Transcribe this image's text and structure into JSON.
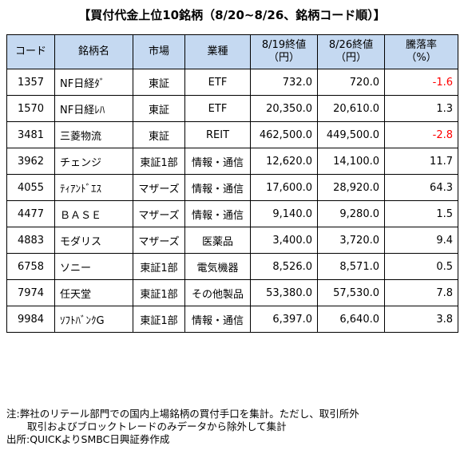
{
  "title": "【買付代金上位10銘柄（8/20~8/26、銘柄コード順）】",
  "headers": {
    "code": "コード",
    "name": "銘柄名",
    "market": "市場",
    "sector": "業種",
    "price_0819_line1": "8/19終値",
    "price_0819_line2": "（円）",
    "price_0826_line1": "8/26終値",
    "price_0826_line2": "（円）",
    "change_line1": "騰落率",
    "change_line2": "（%）"
  },
  "rows": [
    {
      "code": "1357",
      "name": "NF日経ﾀﾞ",
      "market": "東証",
      "sector": "ETF",
      "p0819": "732.0",
      "p0826": "720.0",
      "change": "-1.6"
    },
    {
      "code": "1570",
      "name": "NF日経ﾚﾊ",
      "market": "東証",
      "sector": "ETF",
      "p0819": "20,350.0",
      "p0826": "20,610.0",
      "change": "1.3"
    },
    {
      "code": "3481",
      "name": "三菱物流",
      "market": "東証",
      "sector": "REIT",
      "p0819": "462,500.0",
      "p0826": "449,500.0",
      "change": "-2.8"
    },
    {
      "code": "3962",
      "name": "チェンジ",
      "market": "東証1部",
      "sector": "情報・通信",
      "p0819": "12,620.0",
      "p0826": "14,100.0",
      "change": "11.7"
    },
    {
      "code": "4055",
      "name": "ﾃｨｱﾝﾄﾞｴｽ",
      "market": "マザーズ",
      "sector": "情報・通信",
      "p0819": "17,600.0",
      "p0826": "28,920.0",
      "change": "64.3"
    },
    {
      "code": "4477",
      "name": "ＢＡＳＥ",
      "market": "マザーズ",
      "sector": "情報・通信",
      "p0819": "9,140.0",
      "p0826": "9,280.0",
      "change": "1.5"
    },
    {
      "code": "4883",
      "name": "モダリス",
      "market": "マザーズ",
      "sector": "医薬品",
      "p0819": "3,400.0",
      "p0826": "3,720.0",
      "change": "9.4"
    },
    {
      "code": "6758",
      "name": "ソニー",
      "market": "東証1部",
      "sector": "電気機器",
      "p0819": "8,526.0",
      "p0826": "8,571.0",
      "change": "0.5"
    },
    {
      "code": "7974",
      "name": "任天堂",
      "market": "東証1部",
      "sector": "その他製品",
      "p0819": "53,380.0",
      "p0826": "57,530.0",
      "change": "7.8"
    },
    {
      "code": "9984",
      "name": "ｿﾌﾄﾊﾞﾝｸG",
      "market": "東証1部",
      "sector": "情報・通信",
      "p0819": "6,397.0",
      "p0826": "6,640.0",
      "change": "3.8"
    }
  ],
  "notes": {
    "line1": "注:弊社のリテール部門での国内上場銘柄の買付手口を集計。ただし、取引所外",
    "line2": "取引およびブロックトレードのみデータから除外して集計",
    "line3": "出所:QUICKよりSMBC日興証券作成"
  },
  "colors": {
    "header_bg": "#c5d9f1",
    "negative": "#ff0000"
  }
}
